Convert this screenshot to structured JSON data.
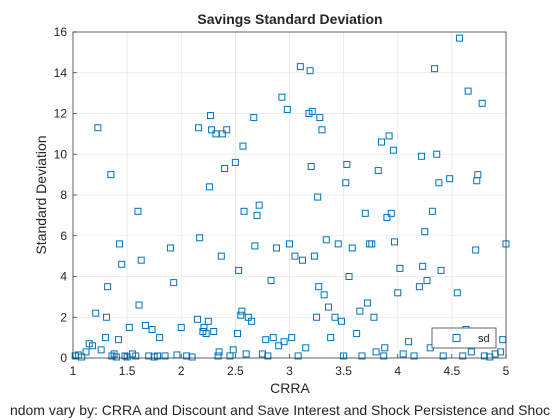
{
  "chart_data": {
    "type": "scatter",
    "title": "Savings Standard Deviation",
    "xlabel": "CRRA",
    "ylabel": "Standard Deviation",
    "caption": "ndom vary by: CRRA and Discount and Save Interest and Shock Persistence and Shoc",
    "xlim": [
      1,
      5
    ],
    "ylim": [
      0,
      16
    ],
    "xticks": [
      "1",
      "1.5",
      "2",
      "2.5",
      "3",
      "3.5",
      "4",
      "4.5",
      "5"
    ],
    "yticks": [
      "0",
      "2",
      "4",
      "6",
      "8",
      "10",
      "12",
      "14",
      "16"
    ],
    "grid": true,
    "legend": {
      "position": "bottom-right",
      "entries": [
        "sd"
      ]
    },
    "series": [
      {
        "name": "sd",
        "marker": "square",
        "color": "#0072BD",
        "points": [
          [
            1.02,
            0.1
          ],
          [
            1.05,
            0.15
          ],
          [
            1.08,
            0.05
          ],
          [
            1.12,
            0.3
          ],
          [
            1.15,
            0.7
          ],
          [
            1.18,
            0.6
          ],
          [
            1.21,
            2.2
          ],
          [
            1.23,
            11.3
          ],
          [
            1.26,
            0.4
          ],
          [
            1.3,
            1.0
          ],
          [
            1.31,
            2.0
          ],
          [
            1.32,
            3.5
          ],
          [
            1.35,
            9.0
          ],
          [
            1.36,
            0.1
          ],
          [
            1.38,
            0.2
          ],
          [
            1.4,
            0.05
          ],
          [
            1.42,
            0.9
          ],
          [
            1.43,
            5.6
          ],
          [
            1.45,
            4.6
          ],
          [
            1.48,
            0.1
          ],
          [
            1.5,
            0.05
          ],
          [
            1.52,
            1.5
          ],
          [
            1.55,
            0.2
          ],
          [
            1.58,
            0.1
          ],
          [
            1.6,
            7.2
          ],
          [
            1.61,
            2.6
          ],
          [
            1.63,
            4.8
          ],
          [
            1.67,
            1.6
          ],
          [
            1.7,
            0.1
          ],
          [
            1.73,
            1.4
          ],
          [
            1.75,
            0.05
          ],
          [
            1.78,
            0.1
          ],
          [
            1.8,
            1.0
          ],
          [
            1.85,
            0.1
          ],
          [
            1.9,
            5.4
          ],
          [
            1.93,
            3.7
          ],
          [
            1.96,
            0.15
          ],
          [
            2.0,
            1.5
          ],
          [
            2.05,
            0.1
          ],
          [
            2.1,
            0.05
          ],
          [
            2.15,
            1.9
          ],
          [
            2.16,
            11.3
          ],
          [
            2.17,
            5.9
          ],
          [
            2.2,
            1.3
          ],
          [
            2.21,
            1.5
          ],
          [
            2.23,
            1.2
          ],
          [
            2.25,
            1.8
          ],
          [
            2.26,
            8.4
          ],
          [
            2.27,
            11.9
          ],
          [
            2.28,
            11.2
          ],
          [
            2.3,
            1.3
          ],
          [
            2.32,
            11.0
          ],
          [
            2.34,
            0.1
          ],
          [
            2.35,
            0.3
          ],
          [
            2.37,
            5.0
          ],
          [
            2.38,
            11.0
          ],
          [
            2.4,
            9.3
          ],
          [
            2.42,
            11.2
          ],
          [
            2.45,
            0.1
          ],
          [
            2.48,
            0.4
          ],
          [
            2.5,
            9.6
          ],
          [
            2.52,
            1.2
          ],
          [
            2.53,
            4.3
          ],
          [
            2.55,
            2.1
          ],
          [
            2.56,
            2.3
          ],
          [
            2.57,
            10.4
          ],
          [
            2.58,
            7.2
          ],
          [
            2.6,
            0.2
          ],
          [
            2.62,
            2.0
          ],
          [
            2.65,
            1.8
          ],
          [
            2.67,
            11.8
          ],
          [
            2.68,
            5.5
          ],
          [
            2.7,
            7.0
          ],
          [
            2.72,
            7.5
          ],
          [
            2.75,
            0.2
          ],
          [
            2.78,
            0.9
          ],
          [
            2.8,
            0.1
          ],
          [
            2.83,
            3.8
          ],
          [
            2.85,
            1.0
          ],
          [
            2.88,
            5.4
          ],
          [
            2.9,
            0.6
          ],
          [
            2.93,
            12.8
          ],
          [
            2.95,
            0.8
          ],
          [
            2.98,
            12.2
          ],
          [
            3.0,
            5.6
          ],
          [
            3.02,
            1.0
          ],
          [
            3.05,
            5.0
          ],
          [
            3.08,
            0.1
          ],
          [
            3.1,
            14.3
          ],
          [
            3.12,
            4.8
          ],
          [
            3.15,
            0.5
          ],
          [
            3.18,
            12.0
          ],
          [
            3.19,
            14.1
          ],
          [
            3.2,
            9.4
          ],
          [
            3.21,
            12.1
          ],
          [
            3.23,
            5.0
          ],
          [
            3.25,
            2.0
          ],
          [
            3.26,
            7.9
          ],
          [
            3.27,
            3.5
          ],
          [
            3.28,
            11.8
          ],
          [
            3.3,
            11.2
          ],
          [
            3.32,
            3.1
          ],
          [
            3.34,
            5.8
          ],
          [
            3.36,
            2.5
          ],
          [
            3.38,
            1.0
          ],
          [
            3.42,
            2.0
          ],
          [
            3.45,
            5.6
          ],
          [
            3.48,
            1.8
          ],
          [
            3.5,
            0.1
          ],
          [
            3.52,
            8.6
          ],
          [
            3.53,
            9.5
          ],
          [
            3.55,
            4.0
          ],
          [
            3.58,
            5.4
          ],
          [
            3.62,
            1.2
          ],
          [
            3.65,
            2.3
          ],
          [
            3.67,
            0.1
          ],
          [
            3.7,
            7.1
          ],
          [
            3.72,
            2.7
          ],
          [
            3.74,
            5.6
          ],
          [
            3.76,
            5.6
          ],
          [
            3.78,
            2.0
          ],
          [
            3.8,
            0.3
          ],
          [
            3.82,
            9.2
          ],
          [
            3.85,
            10.6
          ],
          [
            3.87,
            0.1
          ],
          [
            3.88,
            0.5
          ],
          [
            3.9,
            6.9
          ],
          [
            3.92,
            10.9
          ],
          [
            3.94,
            7.1
          ],
          [
            3.96,
            10.2
          ],
          [
            3.97,
            5.7
          ],
          [
            4.0,
            3.2
          ],
          [
            4.02,
            4.4
          ],
          [
            4.05,
            0.2
          ],
          [
            4.1,
            0.8
          ],
          [
            4.15,
            0.1
          ],
          [
            4.2,
            3.5
          ],
          [
            4.22,
            9.9
          ],
          [
            4.23,
            4.5
          ],
          [
            4.25,
            6.2
          ],
          [
            4.27,
            3.8
          ],
          [
            4.3,
            0.5
          ],
          [
            4.32,
            7.2
          ],
          [
            4.34,
            14.2
          ],
          [
            4.36,
            10.0
          ],
          [
            4.38,
            8.6
          ],
          [
            4.4,
            4.3
          ],
          [
            4.42,
            0.1
          ],
          [
            4.45,
            1.1
          ],
          [
            4.48,
            8.8
          ],
          [
            4.52,
            1.0
          ],
          [
            4.55,
            3.2
          ],
          [
            4.57,
            15.7
          ],
          [
            4.6,
            0.1
          ],
          [
            4.63,
            1.4
          ],
          [
            4.65,
            13.1
          ],
          [
            4.68,
            0.3
          ],
          [
            4.72,
            5.3
          ],
          [
            4.73,
            8.7
          ],
          [
            4.74,
            9.0
          ],
          [
            4.78,
            12.5
          ],
          [
            4.8,
            0.1
          ],
          [
            4.85,
            0.05
          ],
          [
            4.9,
            0.2
          ],
          [
            4.95,
            0.3
          ],
          [
            4.97,
            0.9
          ],
          [
            5.0,
            5.6
          ]
        ]
      }
    ]
  }
}
